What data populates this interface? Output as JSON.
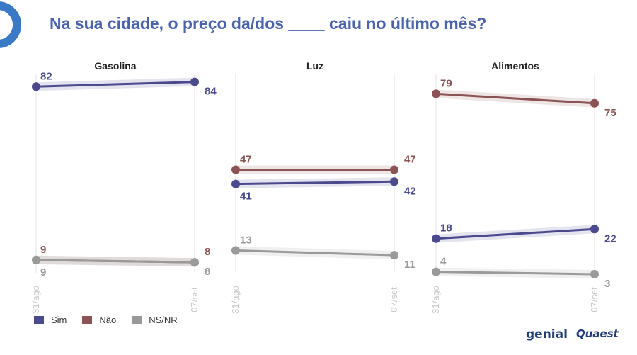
{
  "title": "Na sua cidade, o preço da/dos ____ caiu no último mês?",
  "legend": [
    {
      "label": "Sim",
      "color": "#4b4a8e"
    },
    {
      "label": "Não",
      "color": "#8b5353"
    },
    {
      "label": "NS/NR",
      "color": "#9a9a9a"
    }
  ],
  "logos": {
    "left": "genial",
    "right": "Quaest"
  },
  "chart_data": [
    {
      "type": "line",
      "title": "Gasolina",
      "x": [
        "31/ago",
        "07/set"
      ],
      "ylim": [
        0,
        100
      ],
      "series": [
        {
          "name": "Sim",
          "values": [
            82,
            84
          ],
          "color": "#4b4a8e"
        },
        {
          "name": "Não",
          "values": [
            9,
            8
          ],
          "color": "#8b5353"
        },
        {
          "name": "NS/NR",
          "values": [
            9,
            8
          ],
          "color": "#9a9a9a"
        }
      ]
    },
    {
      "type": "line",
      "title": "Luz",
      "x": [
        "31/ago",
        "07/set"
      ],
      "ylim": [
        0,
        100
      ],
      "series": [
        {
          "name": "Sim",
          "values": [
            41,
            42
          ],
          "color": "#4b4a8e"
        },
        {
          "name": "Não",
          "values": [
            47,
            47
          ],
          "color": "#8b5353"
        },
        {
          "name": "NS/NR",
          "values": [
            13,
            11
          ],
          "color": "#9a9a9a"
        }
      ]
    },
    {
      "type": "line",
      "title": "Alimentos",
      "x": [
        "31/ago",
        "07/set"
      ],
      "ylim": [
        0,
        100
      ],
      "series": [
        {
          "name": "Sim",
          "values": [
            18,
            22
          ],
          "color": "#4b4a8e"
        },
        {
          "name": "Não",
          "values": [
            79,
            75
          ],
          "color": "#8b5353"
        },
        {
          "name": "NS/NR",
          "values": [
            4,
            3
          ],
          "color": "#9a9a9a"
        }
      ]
    }
  ]
}
